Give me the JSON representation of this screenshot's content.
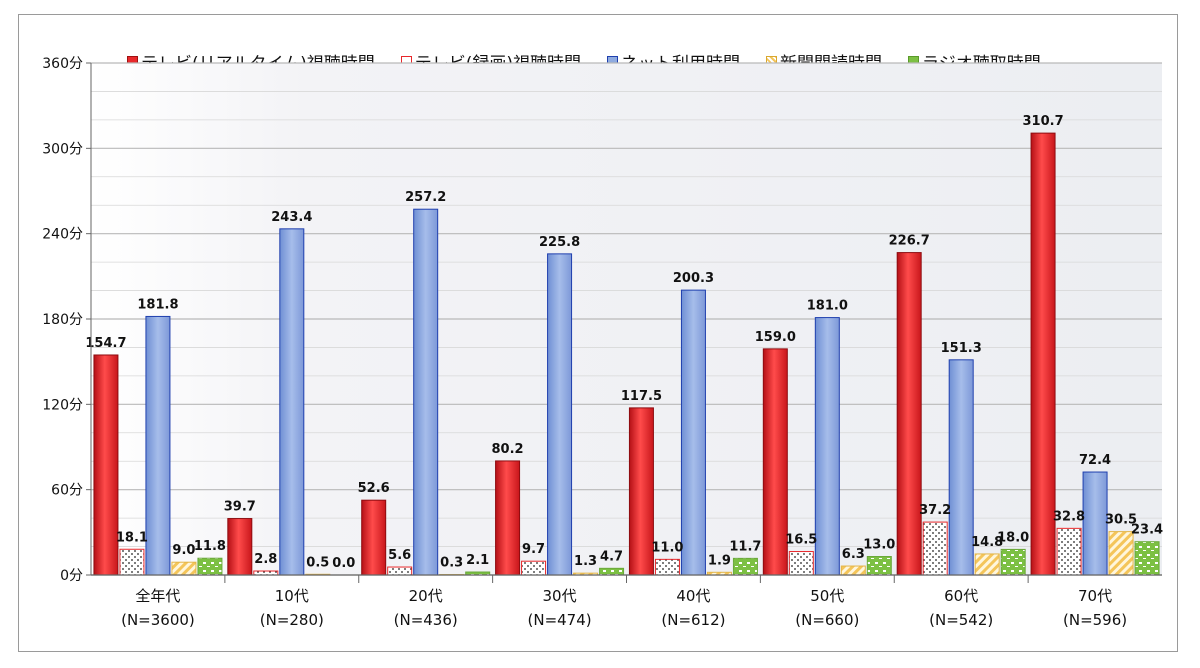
{
  "chart_data": {
    "type": "bar",
    "y_unit": "分",
    "ylim": [
      0,
      360
    ],
    "yticks": [
      "0分",
      "60分",
      "120分",
      "180分",
      "240分",
      "300分",
      "360分"
    ],
    "categories": [
      {
        "line1": "全年代",
        "line2": "(N=3600)"
      },
      {
        "line1": "10代",
        "line2": "(N=280)"
      },
      {
        "line1": "20代",
        "line2": "(N=436)"
      },
      {
        "line1": "30代",
        "line2": "(N=474)"
      },
      {
        "line1": "40代",
        "line2": "(N=612)"
      },
      {
        "line1": "50代",
        "line2": "(N=660)"
      },
      {
        "line1": "60代",
        "line2": "(N=542)"
      },
      {
        "line1": "70代",
        "line2": "(N=596)"
      }
    ],
    "series": [
      {
        "name": "テレビ(リアルタイム)視聴時間",
        "color": "#e8282b",
        "pattern": "solid",
        "values": [
          154.7,
          39.7,
          52.6,
          80.2,
          117.5,
          159.0,
          226.7,
          310.7
        ]
      },
      {
        "name": "テレビ(録画)視聴時間",
        "color": "#e8282b",
        "pattern": "dots",
        "values": [
          18.1,
          2.8,
          5.6,
          9.7,
          11.0,
          16.5,
          37.2,
          32.8
        ]
      },
      {
        "name": "ネット利用時間",
        "color": "#8eaadf",
        "pattern": "solid",
        "values": [
          181.8,
          243.4,
          257.2,
          225.8,
          200.3,
          181.0,
          151.3,
          72.4
        ]
      },
      {
        "name": "新聞閲読時間",
        "color": "#f4c55a",
        "pattern": "stripes",
        "values": [
          9.0,
          0.5,
          0.3,
          1.3,
          1.9,
          6.3,
          14.8,
          30.5
        ]
      },
      {
        "name": "ラジオ聴取時間",
        "color": "#7cc043",
        "pattern": "blocks",
        "values": [
          11.8,
          0.0,
          2.1,
          4.7,
          11.7,
          13.0,
          18.0,
          23.4
        ]
      }
    ],
    "data_labels": [
      [
        "154.7",
        "18.1",
        "181.8",
        "9.0",
        "11.8"
      ],
      [
        "39.7",
        "2.8",
        "243.4",
        "0.5",
        "0.0"
      ],
      [
        "52.6",
        "5.6",
        "257.2",
        "0.3",
        "2.1"
      ],
      [
        "80.2",
        "9.7",
        "225.8",
        "1.3",
        "4.7"
      ],
      [
        "117.5",
        "11.0",
        "200.3",
        "1.9",
        "11.7"
      ],
      [
        "159.0",
        "16.5",
        "181.0",
        "6.3",
        "13.0"
      ],
      [
        "226.7",
        "37.2",
        "151.3",
        "14.8",
        "18.0"
      ],
      [
        "310.7",
        "32.8",
        "72.4",
        "30.5",
        "23.4"
      ]
    ],
    "legend_position": "top"
  }
}
